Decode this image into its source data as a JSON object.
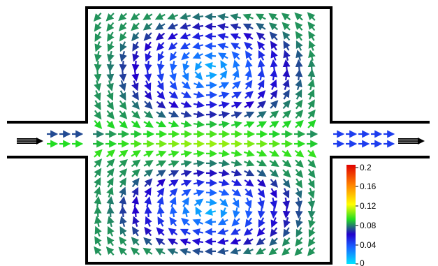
{
  "diagram": {
    "type": "velocity-vector-field",
    "geometry": "cavity with inlet and outlet channels",
    "flow_direction": "left-to-right",
    "features": [
      "central jet",
      "upper recirculation vortex",
      "lower recirculation vortex"
    ]
  },
  "colorbar": {
    "ticks": [
      "0.2",
      "0.16",
      "0.12",
      "0.08",
      "0.04",
      "0"
    ],
    "min": 0,
    "max": 0.2,
    "colormap": [
      "#00e5ff",
      "#1a5cff",
      "#2200cc",
      "#22dd22",
      "#ffff00",
      "#ff8000",
      "#e00000"
    ]
  },
  "colors": {
    "wall": "#000000",
    "background": "#ffffff"
  }
}
